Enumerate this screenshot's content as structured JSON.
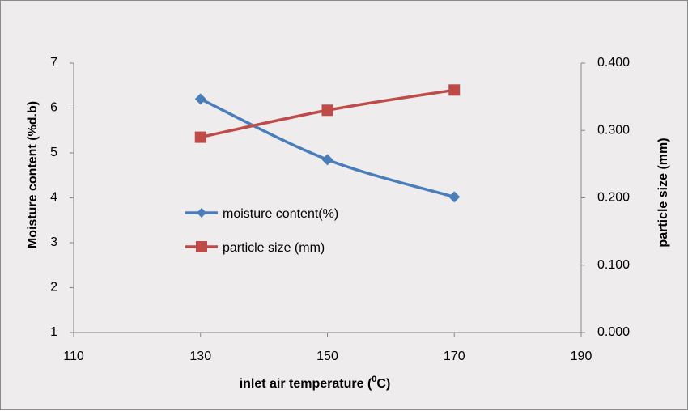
{
  "chart_data": {
    "type": "line",
    "x": [
      130,
      150,
      170
    ],
    "xlabel": "inlet air temperature (",
    "xlabel_sup": "0",
    "xlabel_suffix": "C)",
    "xlim": [
      110,
      190
    ],
    "xticks": [
      "110",
      "130",
      "150",
      "170",
      "190"
    ],
    "ylabel_left": "Moisture content (%d.b)",
    "ylim_left": [
      1,
      7
    ],
    "yticks_left": [
      "1",
      "2",
      "3",
      "4",
      "5",
      "6",
      "7"
    ],
    "ylabel_right": "particle size (mm)",
    "ylim_right": [
      0,
      0.4
    ],
    "yticks_right": [
      "0.000",
      "0.100",
      "0.200",
      "0.300",
      "0.400"
    ],
    "grid": false,
    "legend_position": "center-left",
    "series": [
      {
        "name": "moisture content(%)",
        "axis": "left",
        "marker": "diamond",
        "color": "#4a7ebb",
        "values": [
          6.2,
          4.85,
          4.02
        ]
      },
      {
        "name": "particle size (mm)",
        "axis": "right",
        "marker": "square",
        "color": "#be4b48",
        "values": [
          0.29,
          0.33,
          0.36
        ]
      }
    ]
  }
}
